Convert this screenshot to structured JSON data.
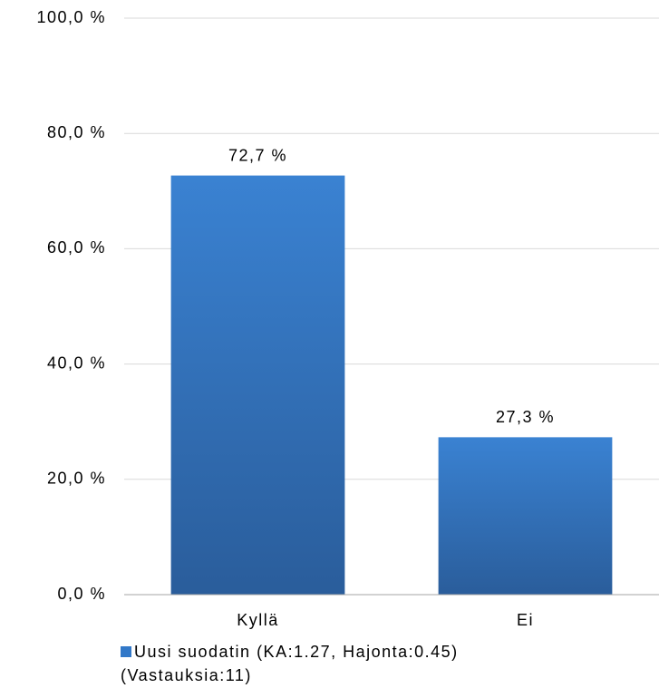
{
  "chart_data": {
    "type": "bar",
    "categories": [
      "Kyllä",
      "Ei"
    ],
    "series": [
      {
        "name": "Uusi suodatin (KA:1.27, Hajonta:0.45) (Vastauksia:11)",
        "color": "#3278c8",
        "values": [
          72.7,
          27.3
        ],
        "value_labels": [
          "72,7 %",
          "27,3 %"
        ]
      }
    ],
    "ylim": [
      0,
      100
    ],
    "yticks": [
      {
        "value": 0,
        "label": "0,0 %"
      },
      {
        "value": 20,
        "label": "20,0 %"
      },
      {
        "value": 40,
        "label": "40,0 %"
      },
      {
        "value": 60,
        "label": "60,0 %"
      },
      {
        "value": 80,
        "label": "80,0 %"
      },
      {
        "value": 100,
        "label": "100,0 %"
      }
    ],
    "grid": true,
    "legend": "bottom"
  }
}
